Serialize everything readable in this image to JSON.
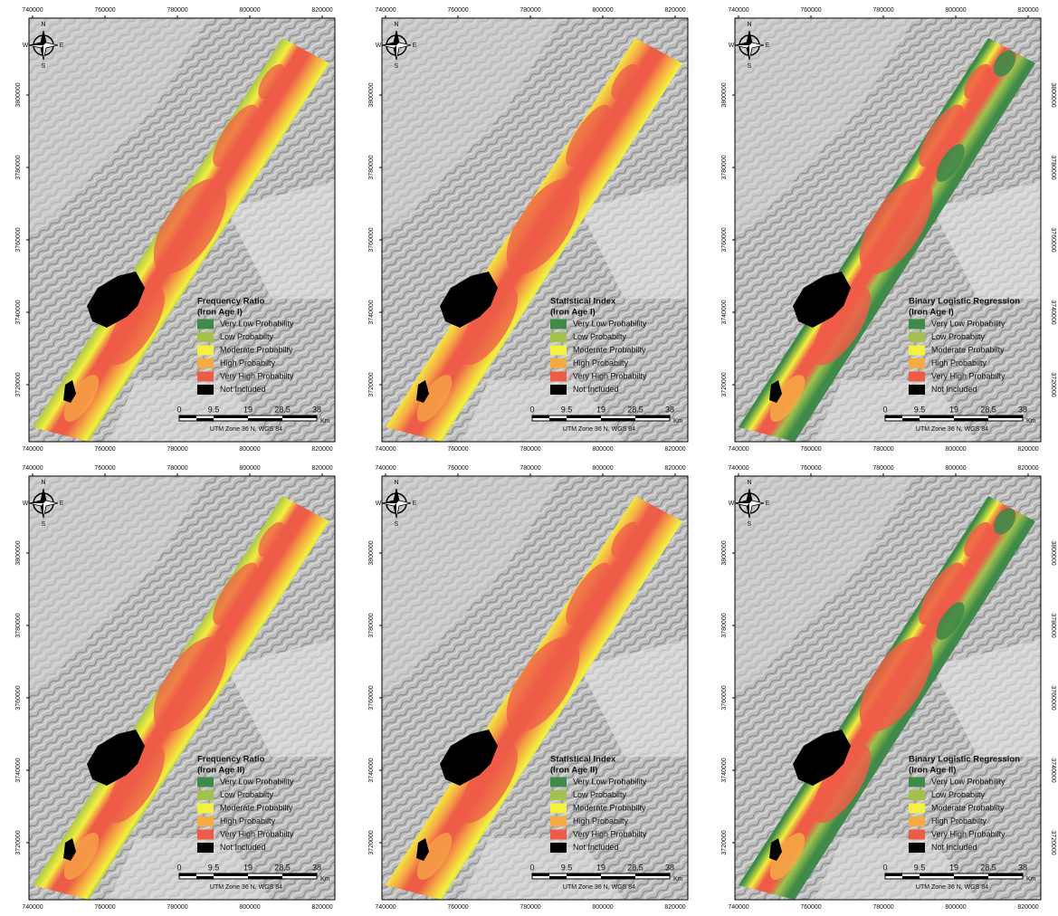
{
  "x_ticks": [
    "740000",
    "760000",
    "780000",
    "800000",
    "820000"
  ],
  "y_ticks": [
    "3800000",
    "3780000",
    "3760000",
    "3740000",
    "3720000"
  ],
  "compass": {
    "n": "N",
    "s": "S",
    "e": "E",
    "w": "W"
  },
  "legend": [
    {
      "label": "Very Low Probability",
      "color": "#3f8a48"
    },
    {
      "label": "Low Probabilty",
      "color": "#a2c24d"
    },
    {
      "label": "Moderate Probabilty",
      "color": "#f3f03f"
    },
    {
      "label": "High Probabilty",
      "color": "#f5aa44"
    },
    {
      "label": "Very High Probabilty",
      "color": "#ee5c48"
    },
    {
      "label": "Not Included",
      "color": "#000000"
    }
  ],
  "scale_bar": {
    "labels": [
      "0",
      "9.5",
      "19",
      "28.5",
      "38"
    ],
    "unit": "Km",
    "projection": "UTM Zone 36 N, WGS 84"
  },
  "panels": [
    {
      "title": "Frequency Ratio",
      "subtitle": "(Iron Age I)"
    },
    {
      "title": "Statistical Index",
      "subtitle": "(Iron Age I)"
    },
    {
      "title": "Binary Logistic Regression",
      "subtitle": "(Iron Age I)"
    },
    {
      "title": "Frequency Ratio",
      "subtitle": "(Iron Age II)"
    },
    {
      "title": "Statistical Index",
      "subtitle": "(Iron Age II)"
    },
    {
      "title": "Binary Logistic Regression",
      "subtitle": "(Iron Age II)"
    }
  ]
}
